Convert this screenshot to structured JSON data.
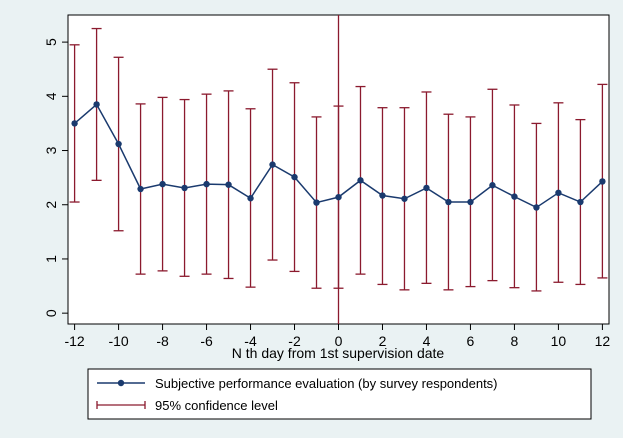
{
  "chart_data": {
    "type": "line",
    "xlabel": "N th day from 1st supervision date",
    "ylabel": "",
    "xlim": [
      -12.3,
      12.3
    ],
    "ylim": [
      -0.2,
      5.5
    ],
    "x_ticks": [
      -12,
      -10,
      -8,
      -6,
      -4,
      -2,
      0,
      2,
      4,
      6,
      8,
      10,
      12
    ],
    "y_ticks": [
      0,
      1,
      2,
      3,
      4,
      5
    ],
    "grid": false,
    "vertical_reference_line_x": 0,
    "legend_position": "bottom",
    "series": [
      {
        "name": "Subjective performance evaluation (by survey respondents)",
        "color": "#1a3a6e",
        "x": [
          -12,
          -11,
          -10,
          -9,
          -8,
          -7,
          -6,
          -5,
          -4,
          -3,
          -2,
          -1,
          0,
          1,
          2,
          3,
          4,
          5,
          6,
          7,
          8,
          9,
          10,
          11,
          12
        ],
        "y": [
          3.5,
          3.85,
          3.12,
          2.29,
          2.38,
          2.31,
          2.38,
          2.37,
          2.12,
          2.74,
          2.51,
          2.04,
          2.14,
          2.45,
          2.17,
          2.11,
          2.31,
          2.05,
          2.05,
          2.36,
          2.15,
          1.95,
          2.22,
          2.05,
          2.43
        ]
      },
      {
        "name": "95% confidence level",
        "color": "#8b1a2e",
        "x": [
          -12,
          -11,
          -10,
          -9,
          -8,
          -7,
          -6,
          -5,
          -4,
          -3,
          -2,
          -1,
          0,
          1,
          2,
          3,
          4,
          5,
          6,
          7,
          8,
          9,
          10,
          11,
          12
        ],
        "lower": [
          2.05,
          2.45,
          1.52,
          0.72,
          0.78,
          0.68,
          0.72,
          0.64,
          0.48,
          0.98,
          0.77,
          0.46,
          0.46,
          0.72,
          0.53,
          0.43,
          0.55,
          0.43,
          0.49,
          0.6,
          0.47,
          0.41,
          0.57,
          0.53,
          0.65
        ],
        "upper": [
          4.95,
          5.25,
          4.72,
          3.86,
          3.98,
          3.94,
          4.04,
          4.1,
          3.77,
          4.5,
          4.25,
          3.62,
          3.82,
          4.18,
          3.79,
          3.79,
          4.08,
          3.67,
          3.62,
          4.13,
          3.84,
          3.5,
          3.88,
          3.57,
          4.22
        ]
      }
    ]
  }
}
